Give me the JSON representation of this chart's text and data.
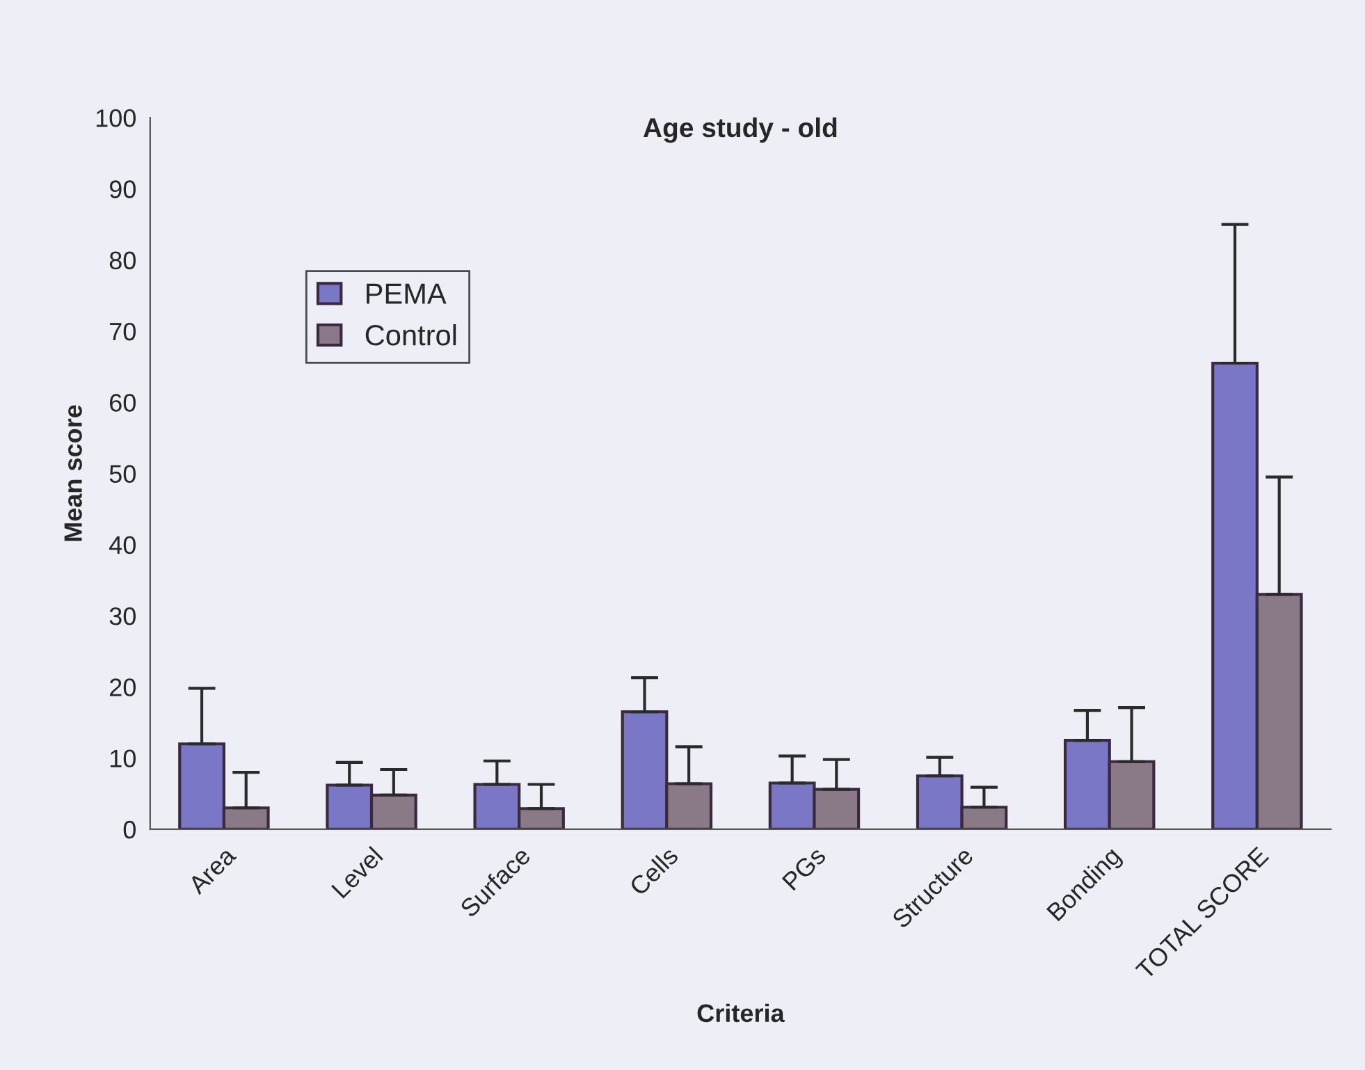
{
  "chart_data": {
    "type": "bar",
    "title": "Age study - old",
    "xlabel": "Criteria",
    "ylabel": "Mean score",
    "categories": [
      "Area",
      "Level",
      "Surface",
      "Cells",
      "PGs",
      "Structure",
      "Bonding",
      "TOTAL SCORE"
    ],
    "series": [
      {
        "name": "PEMA",
        "color": "#7a78c6",
        "values": [
          12,
          6.2,
          6.3,
          16.5,
          6.5,
          7.5,
          12.5,
          65.5
        ],
        "errors": [
          [
            12,
            19.8
          ],
          [
            6.2,
            9.4
          ],
          [
            6.3,
            9.6
          ],
          [
            16.5,
            21.3
          ],
          [
            6.5,
            10.3
          ],
          [
            7.5,
            10.1
          ],
          [
            12.5,
            16.7
          ],
          [
            65.5,
            85
          ]
        ]
      },
      {
        "name": "Control",
        "color": "#8a7a88",
        "values": [
          3,
          4.8,
          2.9,
          6.4,
          5.6,
          3.1,
          9.5,
          33
        ],
        "errors": [
          [
            3,
            8
          ],
          [
            4.8,
            8.4
          ],
          [
            2.9,
            6.3
          ],
          [
            6.4,
            11.6
          ],
          [
            5.6,
            9.8
          ],
          [
            3.1,
            5.9
          ],
          [
            9.5,
            17.1
          ],
          [
            33,
            49.5
          ]
        ]
      }
    ],
    "ylim": [
      0,
      100
    ],
    "yticks": [
      0,
      10,
      20,
      30,
      40,
      50,
      60,
      70,
      80,
      90,
      100
    ],
    "grid": false,
    "legend": "left"
  }
}
